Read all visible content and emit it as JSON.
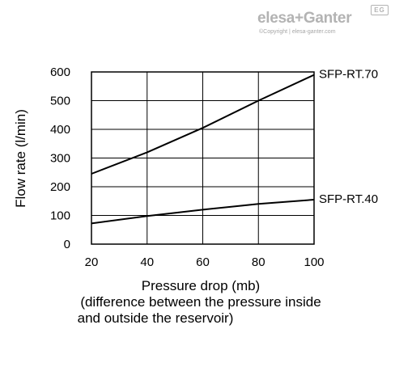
{
  "brand": {
    "name": "elesa+Ganter",
    "copyright": "©Copyright | elesa-ganter.com",
    "badge": "EG"
  },
  "chart_data": {
    "type": "line",
    "title": "",
    "xlabel": "Pressure drop (mb)",
    "xlabel_note_lines": [
      "(difference between the pressure inside",
      "and outside the reservoir)"
    ],
    "ylabel": "Flow rate (l/min)",
    "xlim": [
      20,
      100
    ],
    "ylim": [
      0,
      600
    ],
    "x_ticks": [
      20,
      40,
      60,
      80,
      100
    ],
    "y_ticks": [
      0,
      100,
      200,
      300,
      400,
      500,
      600
    ],
    "grid": true,
    "legend": "direct labels at right end of lines",
    "series": [
      {
        "name": "SFP-RT.70",
        "x": [
          20,
          40,
          60,
          80,
          100
        ],
        "y": [
          245,
          320,
          405,
          500,
          590
        ]
      },
      {
        "name": "SFP-RT.40",
        "x": [
          20,
          40,
          60,
          80,
          100
        ],
        "y": [
          72,
          98,
          120,
          140,
          155
        ]
      }
    ]
  }
}
